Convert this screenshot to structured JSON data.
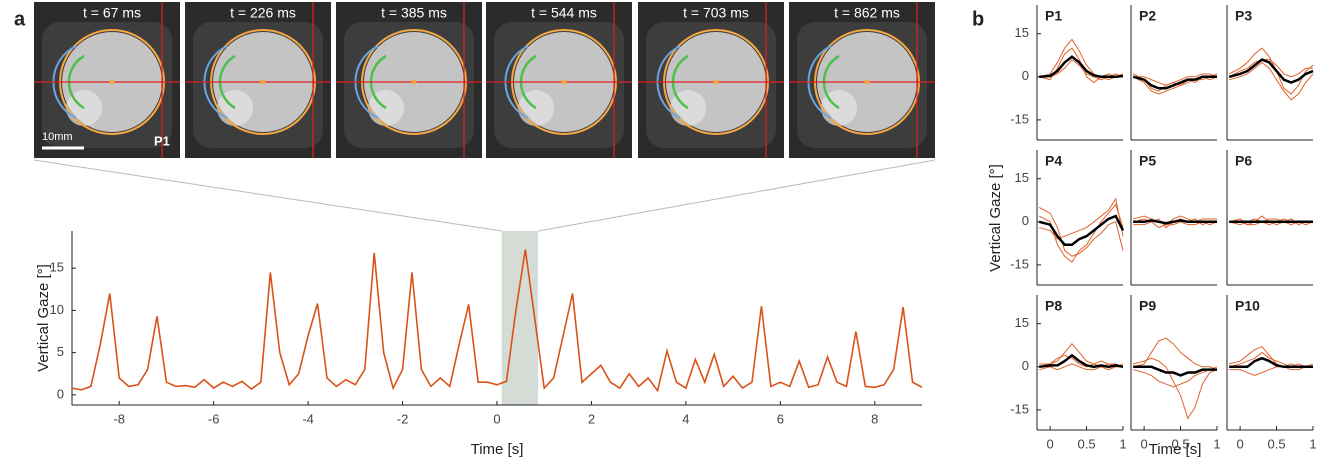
{
  "panel_a": {
    "label": "a",
    "scale_bar": "10mm",
    "participant": "P1",
    "frames": [
      {
        "label": "t = 67 ms"
      },
      {
        "label": "t = 226 ms"
      },
      {
        "label": "t = 385 ms"
      },
      {
        "label": "t = 544 ms"
      },
      {
        "label": "t = 703 ms"
      },
      {
        "label": "t = 862 ms"
      }
    ]
  },
  "panel_b": {
    "label": "b",
    "y_label": "Vertical Gaze [°]",
    "x_label": "Time [s]"
  },
  "chart_data": [
    {
      "type": "line",
      "x_label": "Time [s]",
      "y_label": "Vertical Gaze [°]",
      "x": [
        -9.0,
        -8.8,
        -8.6,
        -8.4,
        -8.2,
        -8.0,
        -7.8,
        -7.6,
        -7.4,
        -7.2,
        -7.0,
        -6.8,
        -6.6,
        -6.4,
        -6.2,
        -6.0,
        -5.8,
        -5.6,
        -5.4,
        -5.2,
        -5.0,
        -4.8,
        -4.6,
        -4.4,
        -4.2,
        -4.0,
        -3.8,
        -3.6,
        -3.4,
        -3.2,
        -3.0,
        -2.8,
        -2.6,
        -2.4,
        -2.2,
        -2.0,
        -1.8,
        -1.6,
        -1.4,
        -1.2,
        -1.0,
        -0.8,
        -0.6,
        -0.4,
        -0.2,
        0.0,
        0.2,
        0.4,
        0.6,
        0.8,
        1.0,
        1.2,
        1.4,
        1.6,
        1.8,
        2.0,
        2.2,
        2.4,
        2.6,
        2.8,
        3.0,
        3.2,
        3.4,
        3.6,
        3.8,
        4.0,
        4.2,
        4.4,
        4.6,
        4.8,
        5.0,
        5.2,
        5.4,
        5.6,
        5.8,
        6.0,
        6.2,
        6.4,
        6.6,
        6.8,
        7.0,
        7.2,
        7.4,
        7.6,
        7.8,
        8.0,
        8.2,
        8.4,
        8.6,
        8.8,
        9.0
      ],
      "series": [
        {
          "color": "#d95319",
          "values": [
            0.8,
            0.6,
            1.0,
            6,
            12,
            2,
            1.0,
            1.2,
            3,
            9.3,
            1.5,
            1.0,
            1.1,
            0.9,
            1.8,
            0.8,
            1.5,
            1.0,
            1.6,
            0.7,
            1.5,
            14.5,
            5,
            1.2,
            2.5,
            7,
            10.8,
            2,
            1.0,
            1.8,
            1.2,
            3,
            16.8,
            5,
            0.8,
            3,
            14.5,
            3,
            1.0,
            2,
            1.0,
            6,
            10.7,
            1.5,
            1.5,
            1.2,
            1.6,
            10,
            17.2,
            9,
            0.8,
            2.0,
            7,
            12,
            1.5,
            2.5,
            3.5,
            1.5,
            0.8,
            2.5,
            1.0,
            2.0,
            0.5,
            5.2,
            1.5,
            0.8,
            4.2,
            1.5,
            4.8,
            1.0,
            2.2,
            0.8,
            1.5,
            10.5,
            1.0,
            1.5,
            1.0,
            4.0,
            0.9,
            1.2,
            4.5,
            1.5,
            1.0,
            7.5,
            1.0,
            0.9,
            1.2,
            3,
            10.4,
            1.5,
            0.9
          ]
        }
      ],
      "highlight": [
        0.1,
        0.87
      ],
      "xlim": [
        -9,
        9
      ],
      "ylim": [
        -1.2,
        19.4
      ],
      "xticks": [
        -8,
        -6,
        -4,
        -2,
        0,
        2,
        4,
        6,
        8
      ],
      "yticks": [
        0,
        5,
        10,
        15
      ]
    },
    {
      "type": "line",
      "title": "P1",
      "x": [
        -0.15,
        0,
        0.1,
        0.2,
        0.3,
        0.4,
        0.5,
        0.6,
        0.7,
        0.8,
        0.9,
        1.0
      ],
      "xlim": [
        -0.18,
        1.0
      ],
      "ylim": [
        -22,
        25
      ],
      "yticks": [
        -15,
        0,
        15
      ],
      "series": [
        {
          "color": "#e0622a",
          "values": [
            0,
            1,
            5,
            10,
            13,
            9,
            4,
            1,
            0,
            -1,
            0,
            1
          ]
        },
        {
          "color": "#e0622a",
          "values": [
            0,
            0,
            1,
            3,
            6,
            4,
            1,
            0,
            -1,
            0,
            1,
            0
          ]
        },
        {
          "color": "#e0622a",
          "values": [
            0,
            -1,
            3,
            8,
            10,
            6,
            0,
            -2,
            0,
            1,
            0,
            0
          ]
        },
        {
          "color": "#000000",
          "values": [
            0,
            0.3,
            2,
            5,
            7,
            5,
            2,
            0.5,
            0,
            0,
            0,
            0.3
          ]
        }
      ]
    },
    {
      "type": "line",
      "title": "P2",
      "x": [
        -0.15,
        0,
        0.1,
        0.2,
        0.3,
        0.4,
        0.5,
        0.6,
        0.7,
        0.8,
        0.9,
        1.0
      ],
      "xlim": [
        -0.18,
        1.0
      ],
      "ylim": [
        -22,
        25
      ],
      "series": [
        {
          "color": "#e0622a",
          "values": [
            0,
            -2,
            -5,
            -6,
            -5,
            -4,
            -3,
            -2,
            -1,
            -1,
            0,
            1
          ]
        },
        {
          "color": "#e0622a",
          "values": [
            0,
            0,
            -1,
            -2,
            -3,
            -2,
            -1,
            0,
            0,
            1,
            1,
            0
          ]
        },
        {
          "color": "#e0622a",
          "values": [
            1,
            -1,
            -4,
            -5,
            -3,
            -2,
            -3,
            -1,
            -2,
            0,
            -1,
            0
          ]
        },
        {
          "color": "#000000",
          "values": [
            0,
            -1,
            -3,
            -4,
            -4,
            -3,
            -2,
            -1,
            -1,
            0,
            0,
            0
          ]
        }
      ]
    },
    {
      "type": "line",
      "title": "P3",
      "x": [
        -0.15,
        0,
        0.1,
        0.2,
        0.3,
        0.4,
        0.5,
        0.6,
        0.7,
        0.8,
        0.9,
        1.0
      ],
      "xlim": [
        -0.18,
        1.0
      ],
      "ylim": [
        -22,
        25
      ],
      "series": [
        {
          "color": "#e0622a",
          "values": [
            1,
            3,
            5,
            8,
            10,
            7,
            2,
            -4,
            -6,
            -3,
            2,
            4
          ]
        },
        {
          "color": "#e0622a",
          "values": [
            -1,
            0,
            1,
            3,
            5,
            3,
            -1,
            -5,
            -8,
            -6,
            -2,
            1
          ]
        },
        {
          "color": "#e0622a",
          "values": [
            0,
            2,
            3,
            5,
            6,
            6,
            4,
            1,
            0,
            1,
            3,
            3
          ]
        },
        {
          "color": "#000000",
          "values": [
            0,
            1,
            2,
            4,
            6,
            5,
            2,
            -1,
            -2,
            -1,
            1,
            2
          ]
        }
      ]
    },
    {
      "type": "line",
      "title": "P4",
      "x": [
        -0.15,
        0,
        0.1,
        0.2,
        0.3,
        0.4,
        0.5,
        0.6,
        0.7,
        0.8,
        0.9,
        1.0
      ],
      "xlim": [
        -0.18,
        1.0
      ],
      "ylim": [
        -22,
        25
      ],
      "yticks": [
        -15,
        0,
        15
      ],
      "series": [
        {
          "color": "#e0622a",
          "values": [
            2,
            0,
            -8,
            -12,
            -14,
            -10,
            -8,
            -4,
            0,
            3,
            6,
            -2
          ]
        },
        {
          "color": "#e0622a",
          "values": [
            -2,
            -3,
            -6,
            -5,
            -4,
            -3,
            -2,
            0,
            2,
            4,
            8,
            -5
          ]
        },
        {
          "color": "#e0622a",
          "values": [
            5,
            3,
            -2,
            -10,
            -12,
            -11,
            -9,
            -6,
            -4,
            -1,
            0,
            -10
          ]
        },
        {
          "color": "#000000",
          "values": [
            0,
            -1,
            -5,
            -8,
            -8,
            -6,
            -5,
            -3,
            -1,
            1,
            2,
            -3
          ]
        }
      ]
    },
    {
      "type": "line",
      "title": "P5",
      "x": [
        -0.15,
        0,
        0.1,
        0.2,
        0.3,
        0.4,
        0.5,
        0.6,
        0.7,
        0.8,
        0.9,
        1.0
      ],
      "xlim": [
        -0.18,
        1.0
      ],
      "ylim": [
        -22,
        25
      ],
      "series": [
        {
          "color": "#e0622a",
          "values": [
            1,
            2,
            1,
            0,
            -1,
            1,
            2,
            1,
            0,
            1,
            1,
            1
          ]
        },
        {
          "color": "#e0622a",
          "values": [
            -1,
            -1,
            0,
            -2,
            -1,
            -1,
            0,
            -1,
            -1,
            0,
            -1,
            0
          ]
        },
        {
          "color": "#e0622a",
          "values": [
            0,
            1,
            0,
            1,
            -2,
            0,
            1,
            0,
            1,
            -1,
            0,
            0
          ]
        },
        {
          "color": "#000000",
          "values": [
            0,
            0,
            0.5,
            0,
            -0.5,
            0,
            0.5,
            0,
            0,
            0,
            0,
            0
          ]
        }
      ]
    },
    {
      "type": "line",
      "title": "P6",
      "x": [
        -0.15,
        0,
        0.1,
        0.2,
        0.3,
        0.4,
        0.5,
        0.6,
        0.7,
        0.8,
        0.9,
        1.0
      ],
      "xlim": [
        -0.18,
        1.0
      ],
      "ylim": [
        -22,
        25
      ],
      "series": [
        {
          "color": "#e0622a",
          "values": [
            0,
            -1,
            0,
            1,
            0,
            -1,
            0,
            1,
            0,
            0,
            -1,
            0
          ]
        },
        {
          "color": "#e0622a",
          "values": [
            0,
            1,
            -1,
            0,
            2,
            0,
            -1,
            0,
            1,
            -1,
            0,
            0
          ]
        },
        {
          "color": "#e0622a",
          "values": [
            0,
            0,
            -1,
            -1,
            0,
            1,
            1,
            0,
            -1,
            0,
            0,
            0
          ]
        },
        {
          "color": "#000000",
          "values": [
            0,
            0,
            0,
            0,
            0,
            0,
            0,
            0,
            0,
            0,
            0,
            0
          ]
        }
      ]
    },
    {
      "type": "line",
      "title": "P8",
      "x": [
        -0.15,
        0,
        0.1,
        0.2,
        0.3,
        0.4,
        0.5,
        0.6,
        0.7,
        0.8,
        0.9,
        1.0
      ],
      "xlim": [
        -0.18,
        1.0
      ],
      "ylim": [
        -22,
        25
      ],
      "yticks": [
        -15,
        0,
        15
      ],
      "xticks": [
        0,
        0.5,
        1
      ],
      "series": [
        {
          "color": "#e0622a",
          "values": [
            1,
            1,
            2,
            5,
            8,
            5,
            2,
            1,
            0,
            1,
            1,
            0
          ]
        },
        {
          "color": "#e0622a",
          "values": [
            -1,
            0,
            -1,
            0,
            1,
            0,
            -1,
            -1,
            0,
            -1,
            0,
            0
          ]
        },
        {
          "color": "#e0622a",
          "values": [
            0,
            1,
            3,
            4,
            3,
            1,
            0,
            1,
            2,
            1,
            0,
            1
          ]
        },
        {
          "color": "#000000",
          "values": [
            0,
            0.5,
            0.5,
            2,
            4,
            2,
            0.5,
            0,
            0.5,
            0,
            0.5,
            0
          ]
        }
      ]
    },
    {
      "type": "line",
      "title": "P9",
      "x": [
        -0.15,
        0,
        0.1,
        0.2,
        0.3,
        0.4,
        0.5,
        0.6,
        0.7,
        0.8,
        0.9,
        1.0
      ],
      "xlim": [
        -0.18,
        1.0
      ],
      "ylim": [
        -22,
        25
      ],
      "xticks": [
        0,
        0.5,
        1
      ],
      "series": [
        {
          "color": "#e0622a",
          "values": [
            1,
            2,
            3,
            2,
            0,
            -5,
            -10,
            -18,
            -14,
            -6,
            -2,
            -1
          ]
        },
        {
          "color": "#e0622a",
          "values": [
            0,
            1,
            5,
            9,
            10,
            8,
            5,
            3,
            1,
            0,
            0,
            -1
          ]
        },
        {
          "color": "#e0622a",
          "values": [
            -1,
            -2,
            -3,
            -5,
            -6,
            -7,
            -6,
            -5,
            -3,
            -2,
            -1,
            0
          ]
        },
        {
          "color": "#000000",
          "values": [
            0,
            0,
            0,
            -1,
            -2,
            -2,
            -3,
            -2,
            -2,
            -1,
            -1,
            -1
          ]
        }
      ]
    },
    {
      "type": "line",
      "title": "P10",
      "x": [
        -0.15,
        0,
        0.1,
        0.2,
        0.3,
        0.4,
        0.5,
        0.6,
        0.7,
        0.8,
        0.9,
        1.0
      ],
      "xlim": [
        -0.18,
        1.0
      ],
      "ylim": [
        -22,
        25
      ],
      "xticks": [
        0,
        0.5,
        1
      ],
      "series": [
        {
          "color": "#e0622a",
          "values": [
            1,
            2,
            4,
            6,
            7,
            4,
            1,
            0,
            1,
            0,
            0,
            1
          ]
        },
        {
          "color": "#e0622a",
          "values": [
            -1,
            -1,
            -2,
            -3,
            -2,
            -1,
            0,
            0,
            -1,
            -1,
            0,
            0
          ]
        },
        {
          "color": "#e0622a",
          "values": [
            0,
            1,
            2,
            3,
            5,
            3,
            2,
            1,
            0,
            1,
            0,
            0
          ]
        },
        {
          "color": "#000000",
          "values": [
            0,
            0,
            0,
            2,
            3,
            2,
            0.5,
            0,
            0,
            0,
            0,
            0
          ]
        }
      ]
    }
  ]
}
